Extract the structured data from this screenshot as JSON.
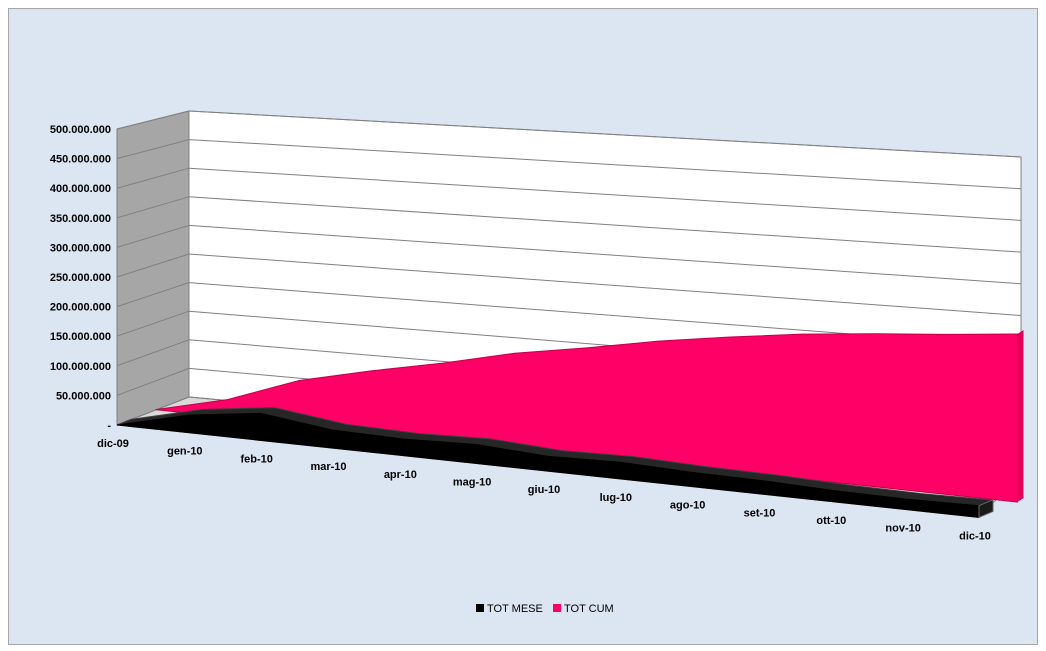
{
  "chart_data": {
    "type": "area",
    "title": "",
    "xlabel": "",
    "ylabel": "",
    "categories": [
      "dic-09",
      "gen-10",
      "feb-10",
      "mar-10",
      "apr-10",
      "mag-10",
      "giu-10",
      "lug-10",
      "ago-10",
      "set-10",
      "ott-10",
      "nov-10",
      "dic-10"
    ],
    "y_ticks": [
      "-",
      "50.000.000",
      "100.000.000",
      "150.000.000",
      "200.000.000",
      "250.000.000",
      "300.000.000",
      "350.000.000",
      "400.000.000",
      "450.000.000",
      "500.000.000"
    ],
    "ylim": [
      0,
      500000000
    ],
    "grid": true,
    "legend_position": "bottom",
    "series": [
      {
        "name": "TOT MESE",
        "color": "#000000",
        "values": [
          0,
          30000000,
          47000000,
          32000000,
          30000000,
          35000000,
          28000000,
          32000000,
          28000000,
          27000000,
          23000000,
          22000000,
          25000000
        ]
      },
      {
        "name": "TOT CUM",
        "color": "#ff0066",
        "values": [
          0,
          30000000,
          77000000,
          109000000,
          139000000,
          174000000,
          202000000,
          234000000,
          262000000,
          289000000,
          312000000,
          334000000,
          359000000
        ]
      }
    ]
  }
}
